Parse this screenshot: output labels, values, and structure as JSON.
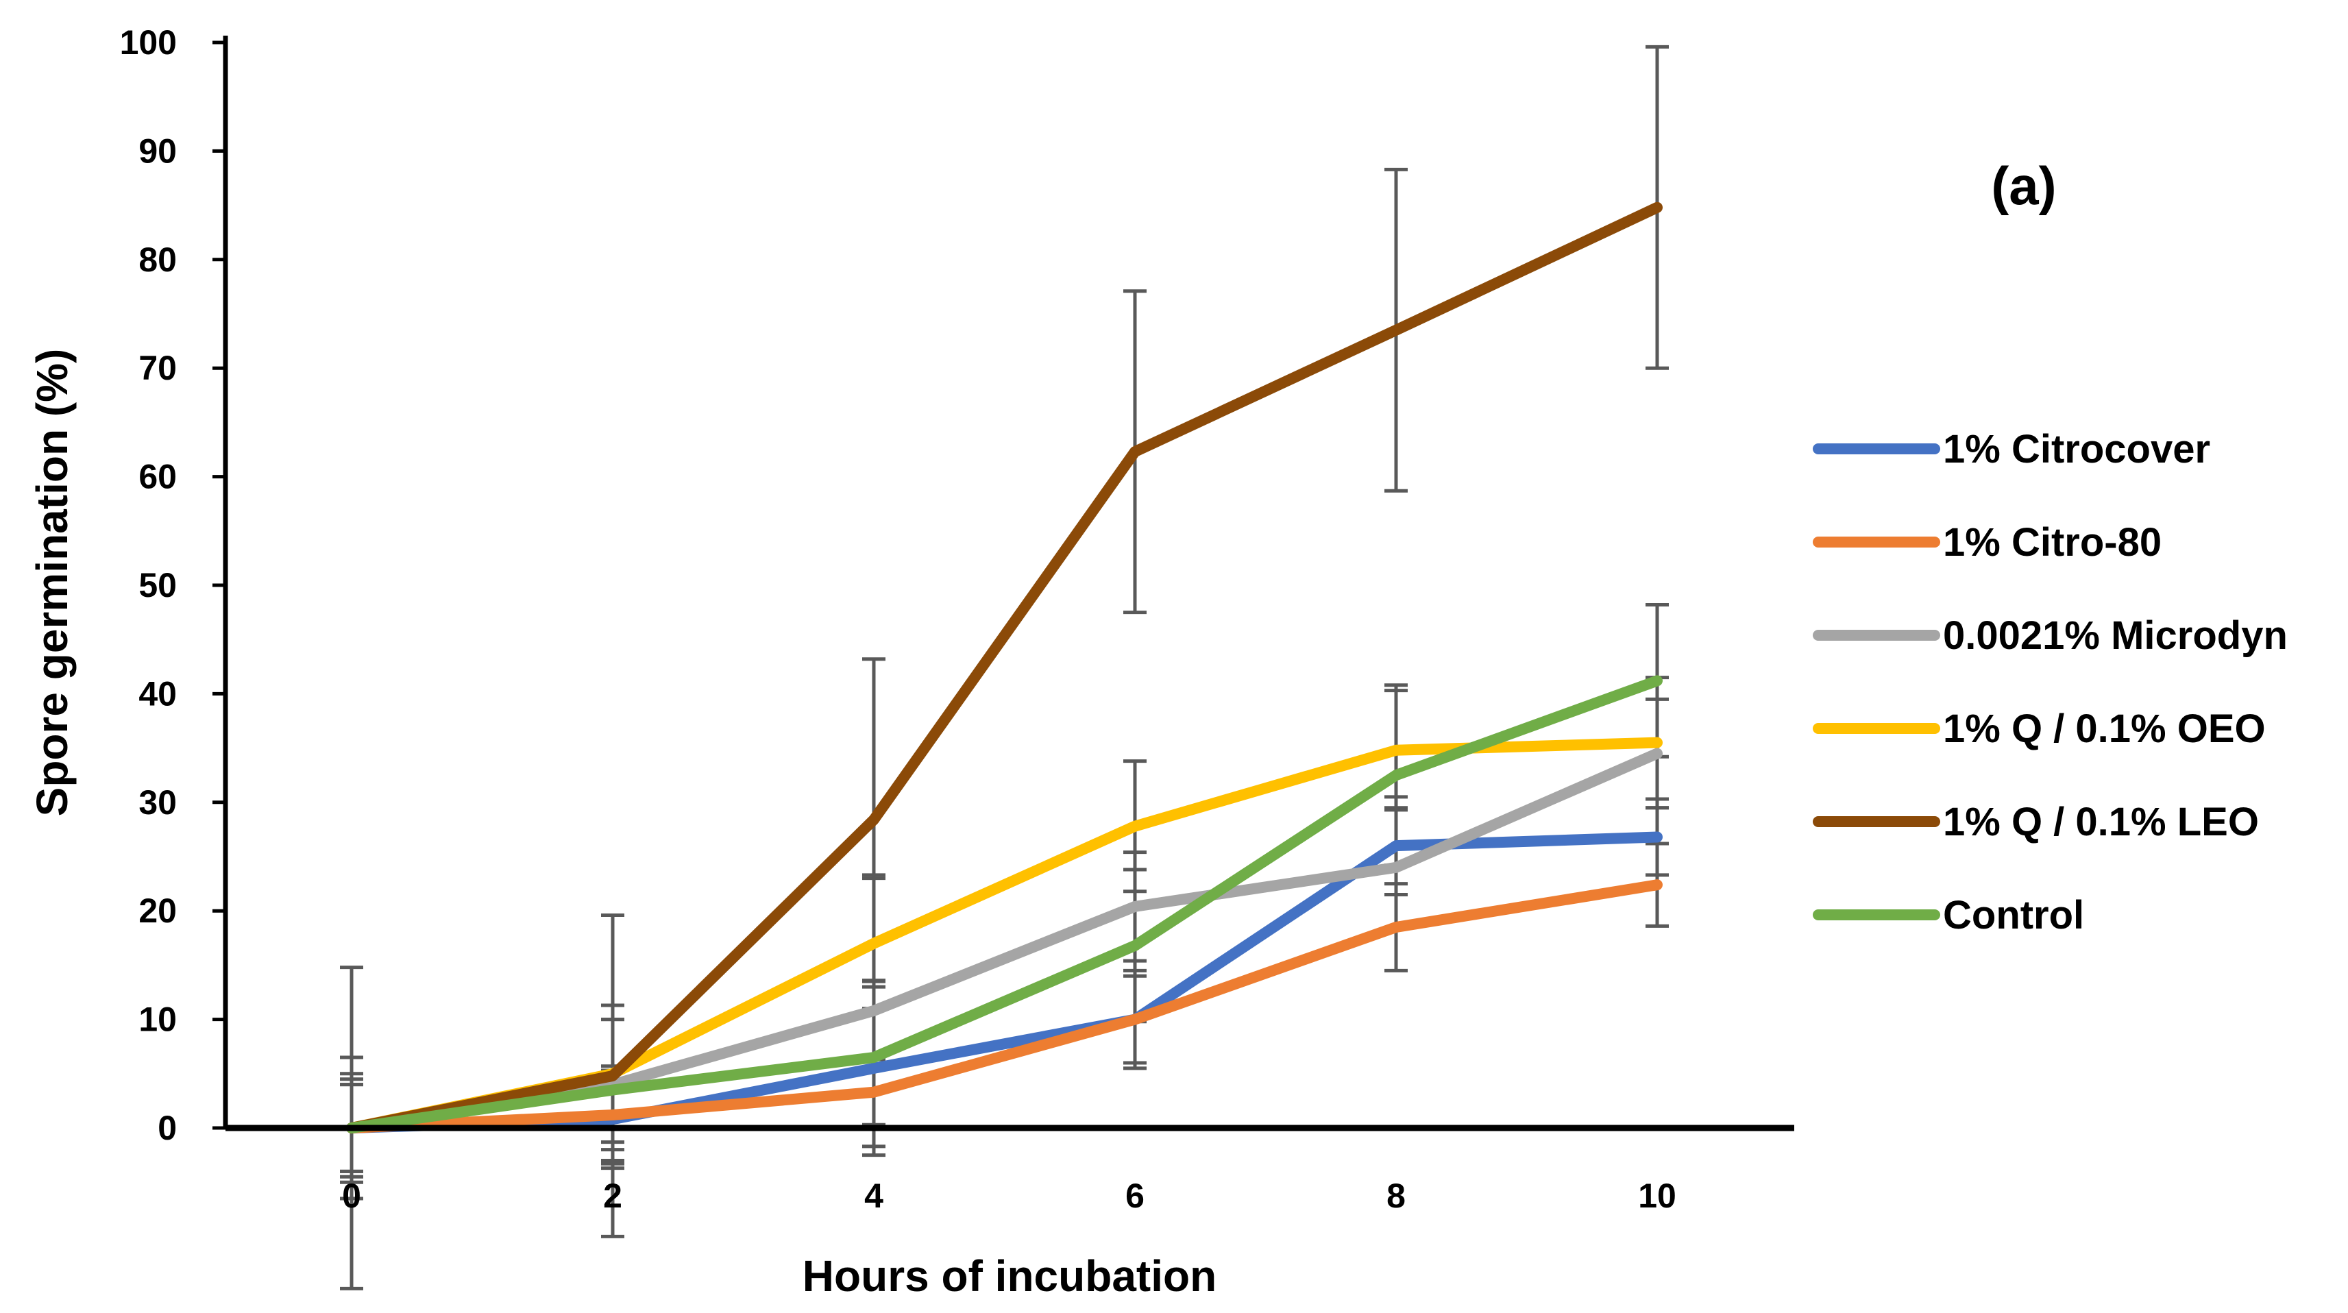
{
  "chart_data": {
    "type": "line",
    "title": "",
    "panel_label": "(a)",
    "xlabel": "Hours of incubation",
    "ylabel": "Spore germination (%)",
    "x": [
      0,
      2,
      4,
      6,
      8,
      10
    ],
    "x_tick_labels": [
      "0",
      "2",
      "4",
      "6",
      "8",
      "10"
    ],
    "y_tick_labels": [
      "0",
      "10",
      "20",
      "30",
      "40",
      "50",
      "60",
      "70",
      "80",
      "90",
      "100"
    ],
    "xlim": [
      -1,
      11
    ],
    "ylim": [
      0,
      100
    ],
    "grid": false,
    "legend_position": "right",
    "series": [
      {
        "name": "1% Citrocover",
        "color": "#4472C4",
        "values": [
          0,
          0.8,
          5.5,
          10,
          26,
          26.8
        ],
        "error": [
          4,
          4.5,
          8,
          4,
          4.5,
          3.5
        ]
      },
      {
        "name": "1% Citro-80",
        "color": "#ED7D31",
        "values": [
          0,
          1.2,
          3.3,
          10,
          18.5,
          22.4
        ],
        "error": [
          4.5,
          4.5,
          3,
          4.5,
          4,
          3.8
        ]
      },
      {
        "name": "0.0021% Microdyn",
        "color": "#A5A5A5",
        "values": [
          0,
          4,
          10.8,
          20.4,
          24,
          34.5
        ],
        "error": [
          5,
          6,
          12.5,
          5,
          5.5,
          5
        ]
      },
      {
        "name": "1% Q / 0.1% OEO",
        "color": "#FFC000",
        "values": [
          0,
          5,
          17,
          27.8,
          34.8,
          35.5
        ],
        "error": [
          6.5,
          6.3,
          6,
          6,
          5.5,
          6
        ]
      },
      {
        "name": "1% Q / 0.1% LEO",
        "color": "#8B4A08",
        "values": [
          0,
          4.8,
          28.4,
          62.3,
          73.5,
          84.8
        ],
        "error": [
          14.8,
          14.8,
          14.8,
          14.8,
          14.8,
          14.8
        ]
      },
      {
        "name": "Control",
        "color": "#70AD47",
        "values": [
          0,
          3.5,
          6.5,
          16.8,
          32.5,
          41.2
        ],
        "error": [
          4,
          6.5,
          6.5,
          7,
          8.3,
          7
        ]
      }
    ]
  }
}
